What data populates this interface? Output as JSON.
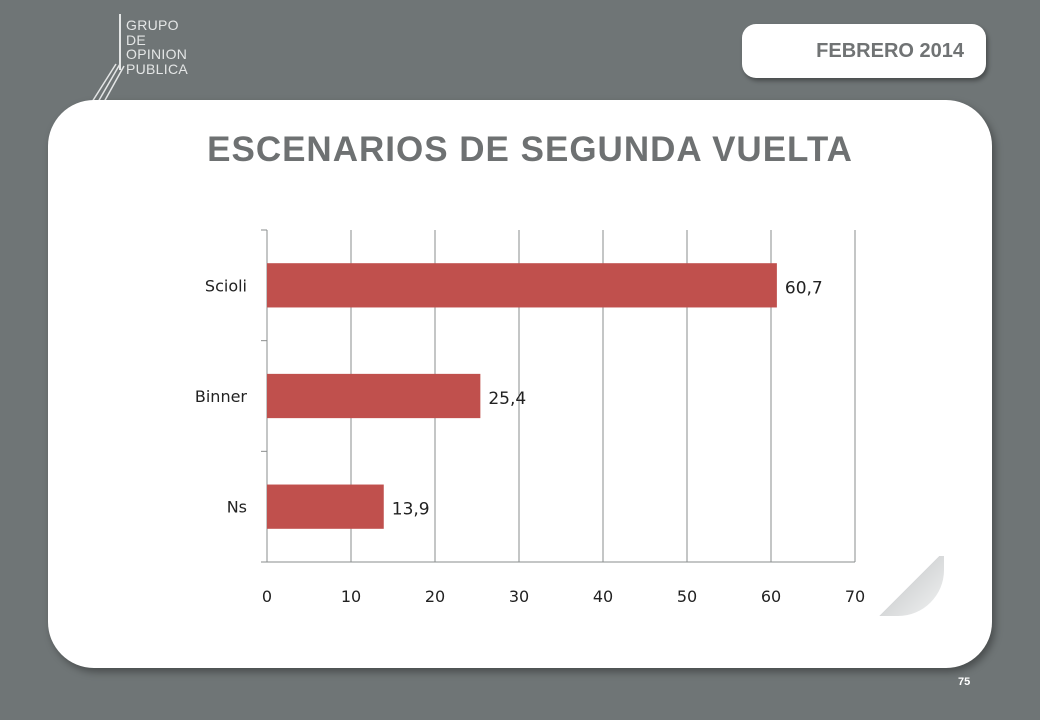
{
  "header": {
    "logo_lines": [
      "GRUPO",
      "DE",
      "OPINION",
      "PUBLICA"
    ],
    "date": "FEBRERO 2014"
  },
  "slide": {
    "title": "ESCENARIOS DE SEGUNDA VUELTA",
    "page_number": "75"
  },
  "colors": {
    "bar": "#c0504d",
    "background": "#6f7576",
    "title": "#6e7172"
  },
  "chart_data": {
    "type": "bar",
    "orientation": "horizontal",
    "categories": [
      "Scioli",
      "Binner",
      "Ns"
    ],
    "values": [
      60.7,
      25.4,
      13.9
    ],
    "data_labels": [
      "60,7",
      "25,4",
      "13,9"
    ],
    "xlim": [
      0,
      70
    ],
    "xticks": [
      0,
      10,
      20,
      30,
      40,
      50,
      60,
      70
    ],
    "grid": true,
    "legend": "none"
  }
}
